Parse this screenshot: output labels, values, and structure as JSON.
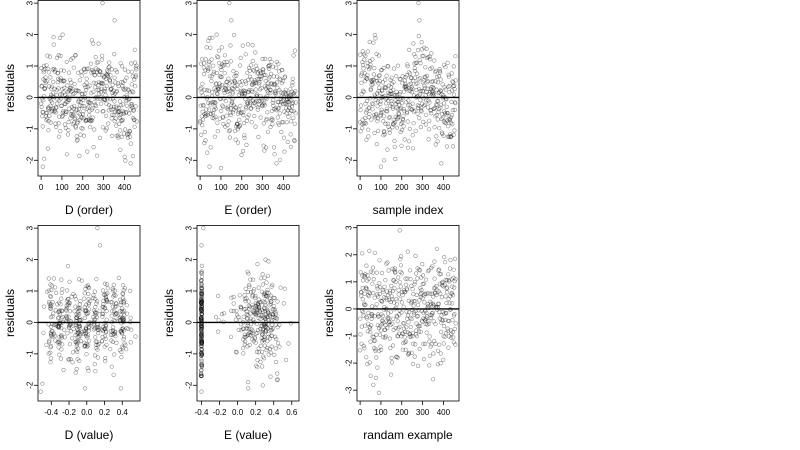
{
  "chart_data": [
    {
      "type": "scatter",
      "xlabel": "D (order)",
      "ylabel": "residuals",
      "xlim": [
        -15,
        475
      ],
      "ylim": [
        -2.5,
        3.1
      ],
      "xticks": [
        0,
        100,
        200,
        300,
        400
      ],
      "yticks": [
        -2,
        -1,
        0,
        1,
        2,
        3
      ],
      "reference_line_y": 0,
      "pattern": "index",
      "seed": 11,
      "outliers": [
        [
          295,
          3.0
        ],
        [
          353,
          2.45
        ],
        [
          8,
          -2.2
        ],
        [
          15,
          -1.95
        ]
      ]
    },
    {
      "type": "scatter",
      "xlabel": "E (order)",
      "ylabel": "residuals",
      "xlim": [
        -15,
        475
      ],
      "ylim": [
        -2.5,
        3.1
      ],
      "xticks": [
        0,
        100,
        200,
        300,
        400
      ],
      "yticks": [
        -2,
        -1,
        0,
        1,
        2,
        3
      ],
      "reference_line_y": 0,
      "pattern": "index",
      "seed": 23,
      "outliers": [
        [
          140,
          3.0
        ],
        [
          150,
          2.45
        ],
        [
          45,
          -2.2
        ],
        [
          100,
          -2.25
        ]
      ]
    },
    {
      "type": "scatter",
      "xlabel": "sample index",
      "ylabel": "residuals",
      "xlim": [
        -15,
        475
      ],
      "ylim": [
        -2.5,
        3.1
      ],
      "xticks": [
        0,
        100,
        200,
        300,
        400
      ],
      "yticks": [
        -2,
        -1,
        0,
        1,
        2,
        3
      ],
      "reference_line_y": 0,
      "pattern": "index",
      "seed": 37,
      "outliers": [
        [
          280,
          3.0
        ],
        [
          285,
          2.45
        ],
        [
          100,
          -2.2
        ],
        [
          115,
          -2.0
        ]
      ]
    },
    {
      "type": "scatter",
      "xlabel": "D (value)",
      "ylabel": "residuals",
      "xlim": [
        -0.55,
        0.6
      ],
      "ylim": [
        -2.5,
        3.1
      ],
      "xticks": [
        -0.4,
        -0.2,
        0.0,
        0.2,
        0.4
      ],
      "yticks": [
        -2,
        -1,
        0,
        1,
        2,
        3
      ],
      "reference_line_y": 0,
      "pattern": "dvalue",
      "seed": 51,
      "outliers": [
        [
          0.12,
          3.0
        ],
        [
          0.15,
          2.45
        ],
        [
          -0.52,
          -2.2
        ],
        [
          -0.5,
          -1.95
        ]
      ]
    },
    {
      "type": "scatter",
      "xlabel": "E (value)",
      "ylabel": "residuals",
      "xlim": [
        -0.45,
        0.68
      ],
      "ylim": [
        -2.5,
        3.1
      ],
      "xticks": [
        -0.4,
        -0.2,
        0.0,
        0.2,
        0.4,
        0.6
      ],
      "yticks": [
        -2,
        -1,
        0,
        1,
        2,
        3
      ],
      "reference_line_y": 0,
      "pattern": "evalue",
      "seed": 67,
      "outliers": [
        [
          -0.38,
          3.0
        ],
        [
          -0.4,
          2.45
        ],
        [
          -0.4,
          -2.2
        ]
      ]
    },
    {
      "type": "scatter",
      "xlabel": "randam example",
      "ylabel": "residuals",
      "xlim": [
        -15,
        475
      ],
      "ylim": [
        -3.4,
        3.1
      ],
      "xticks": [
        0,
        100,
        200,
        300,
        400
      ],
      "yticks": [
        -3,
        -2,
        -1,
        0,
        1,
        2,
        3
      ],
      "reference_line_y": 0,
      "pattern": "random",
      "seed": 79,
      "outliers": [
        [
          190,
          2.9
        ],
        [
          90,
          -3.1
        ],
        [
          350,
          -2.6
        ]
      ]
    }
  ]
}
